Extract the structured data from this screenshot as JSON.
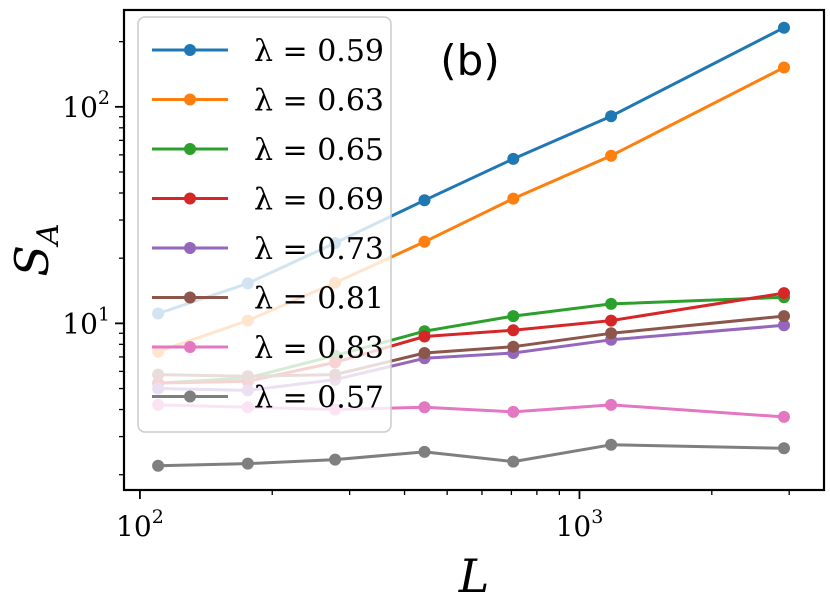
{
  "chart_data": {
    "type": "line",
    "title": "",
    "annotation": "(b)",
    "xlabel": "L",
    "ylabel": "S",
    "ylabel_sub": "A",
    "xscale": "log",
    "yscale": "log",
    "xlim": [
      92,
      3600
    ],
    "ylim": [
      1.7,
      280
    ],
    "grid": false,
    "legend_position": "top-left",
    "x": [
      110,
      176,
      278,
      444,
      707,
      1180,
      2920
    ],
    "x_ticks": [
      {
        "value": 100,
        "base": "10",
        "exp": "2"
      },
      {
        "value": 1000,
        "base": "10",
        "exp": "3"
      }
    ],
    "y_ticks": [
      {
        "value": 10,
        "base": "10",
        "exp": "1"
      },
      {
        "value": 100,
        "base": "10",
        "exp": "2"
      }
    ],
    "series": [
      {
        "name": "λ = 0.59",
        "color": "#1f77b4",
        "values": [
          11.1,
          15.3,
          23.5,
          37.0,
          57.5,
          90.5,
          232
        ]
      },
      {
        "name": "λ = 0.63",
        "color": "#ff7f0e",
        "values": [
          7.4,
          10.3,
          15.4,
          23.8,
          37.7,
          59.5,
          152
        ]
      },
      {
        "name": "λ = 0.65",
        "color": "#2ca02c",
        "values": [
          5.3,
          5.6,
          7.1,
          9.2,
          10.8,
          12.3,
          13.2
        ]
      },
      {
        "name": "λ = 0.69",
        "color": "#d62728",
        "values": [
          5.3,
          5.4,
          6.6,
          8.7,
          9.3,
          10.3,
          13.8
        ]
      },
      {
        "name": "λ = 0.73",
        "color": "#9467bd",
        "values": [
          5.0,
          4.9,
          5.5,
          6.9,
          7.3,
          8.4,
          9.8
        ]
      },
      {
        "name": "λ = 0.81",
        "color": "#8c564b",
        "values": [
          5.8,
          5.7,
          5.8,
          7.3,
          7.8,
          9.0,
          10.8
        ]
      },
      {
        "name": "λ = 0.83",
        "color": "#e377c2",
        "values": [
          4.2,
          4.1,
          4.0,
          4.1,
          3.9,
          4.2,
          3.7
        ]
      },
      {
        "name": "λ = 0.57",
        "color": "#7f7f7f",
        "values": [
          2.2,
          2.25,
          2.35,
          2.55,
          2.3,
          2.75,
          2.65
        ]
      }
    ]
  }
}
